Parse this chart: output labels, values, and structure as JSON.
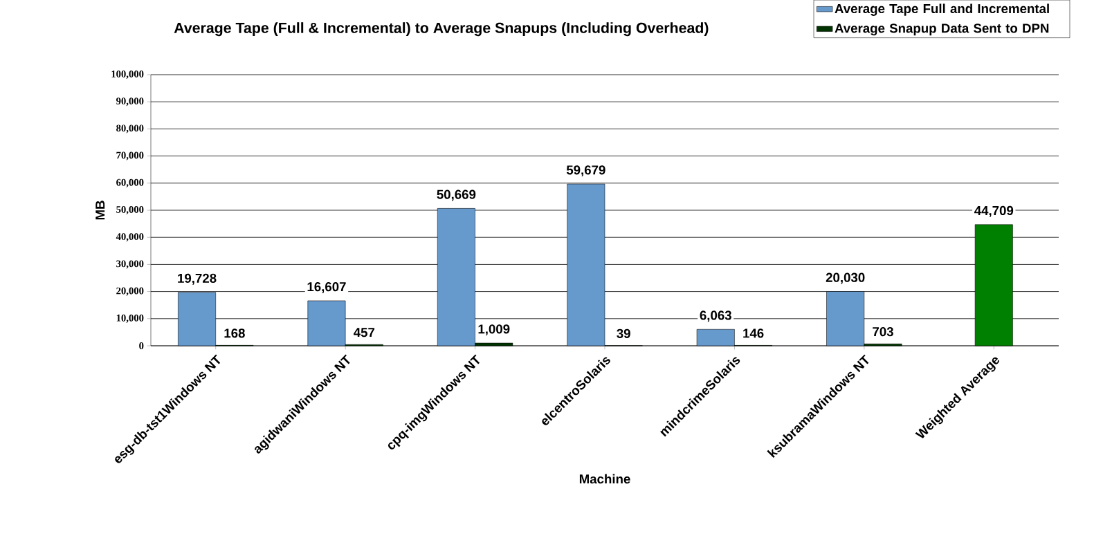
{
  "chart_data": {
    "type": "bar",
    "title": "Average Tape (Full & Incremental) to Average Snapups (Including Overhead)",
    "xlabel": "Machine",
    "ylabel": "MB",
    "categories": [
      "esg-db-tst1Windows NT",
      "agidwaniWindows NT",
      "cpq-imgWindows NT",
      "elcentroSolaris",
      "mindcrimeSolaris",
      "ksubramaWindows NT",
      "Weighted Average"
    ],
    "series": [
      {
        "name": "Average Tape Full and Incremental",
        "color": "#6699cc",
        "values": [
          19728,
          16607,
          50669,
          59679,
          6063,
          20030,
          null
        ],
        "value_labels": [
          "19,728",
          "16,607",
          "50,669",
          "59,679",
          "6,063",
          "20,030",
          null
        ]
      },
      {
        "name": "Average Snapup Data Sent to DPN",
        "color": "#003300",
        "values": [
          168,
          457,
          1009,
          39,
          146,
          703,
          null
        ],
        "value_labels": [
          "168",
          "457",
          "1,009",
          "39",
          "146",
          "703",
          null
        ]
      },
      {
        "color": "#008000",
        "values": [
          null,
          null,
          null,
          null,
          null,
          null,
          44709
        ],
        "value_labels": [
          null,
          null,
          null,
          null,
          null,
          null,
          "44,709"
        ]
      }
    ],
    "ylim": [
      0,
      100000
    ],
    "yticks": [
      {
        "value": 0,
        "label": "0"
      },
      {
        "value": 10000,
        "label": "10,000"
      },
      {
        "value": 20000,
        "label": "20,000"
      },
      {
        "value": 30000,
        "label": "30,000"
      },
      {
        "value": 40000,
        "label": "40,000"
      },
      {
        "value": 50000,
        "label": "50,000"
      },
      {
        "value": 60000,
        "label": "60,000"
      },
      {
        "value": 70000,
        "label": "70,000"
      },
      {
        "value": 80000,
        "label": "80,000"
      },
      {
        "value": 90000,
        "label": "90,000"
      },
      {
        "value": 100000,
        "label": "100,000"
      }
    ],
    "grid": "y",
    "legend": "top right"
  }
}
